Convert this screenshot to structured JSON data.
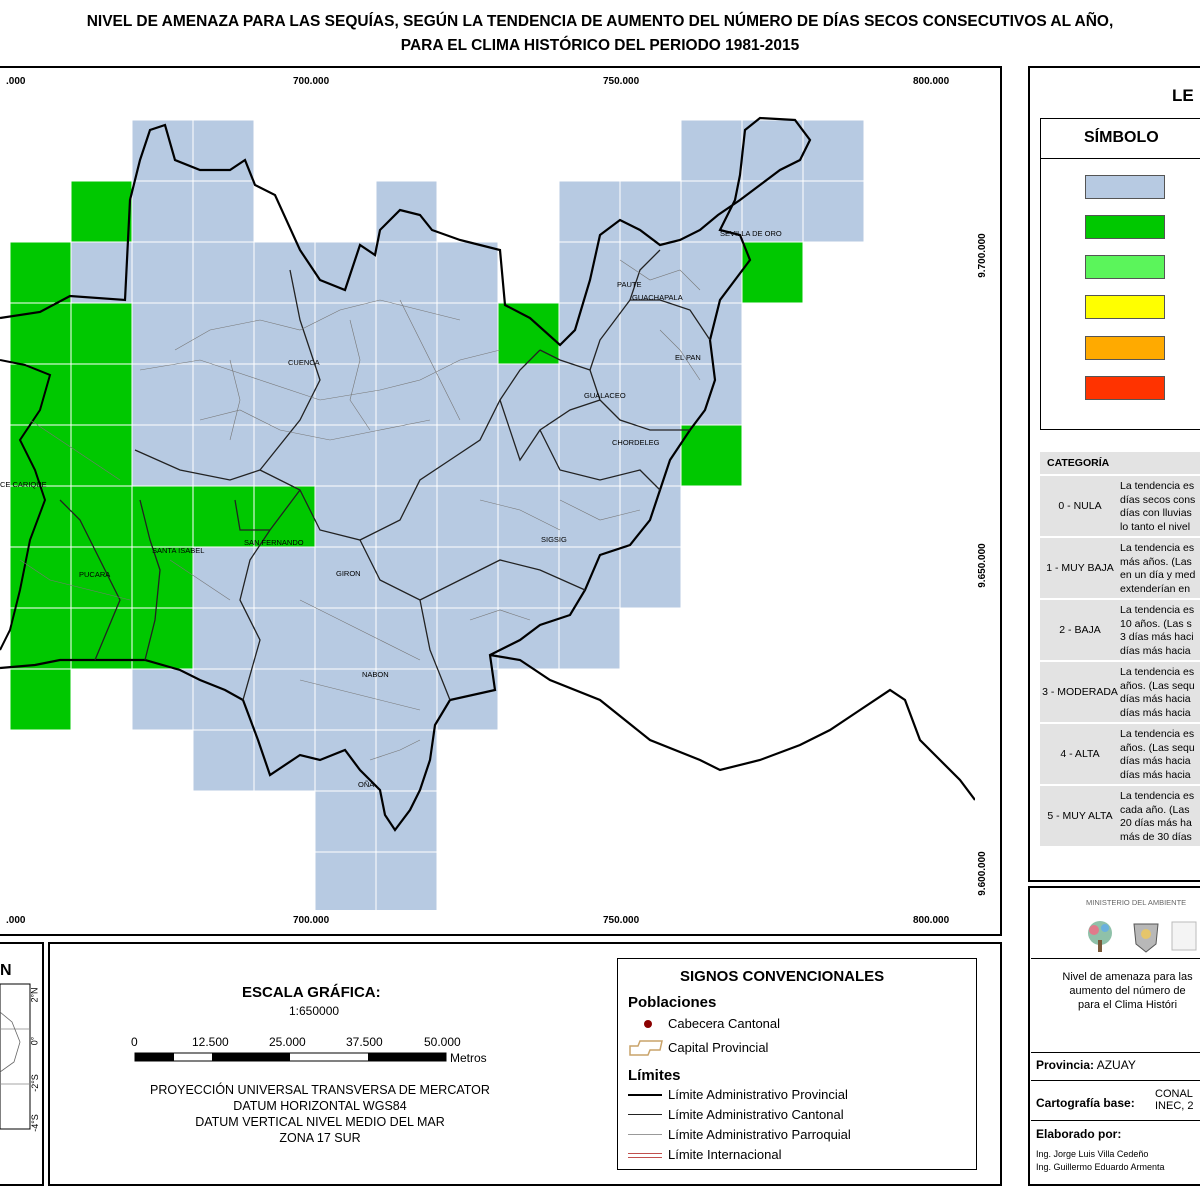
{
  "title": {
    "line1": "NIVEL DE AMENAZA PARA LAS SEQUÍAS, SEGÚN LA TENDENCIA DE AUMENTO DEL NÚMERO DE DÍAS SECOS CONSECUTIVOS AL AÑO,",
    "line2": "PARA EL CLIMA HISTÓRICO DEL PERIODO 1981-2015"
  },
  "map": {
    "x_ticks": [
      ".000",
      "700.000",
      "750.000",
      "800.000"
    ],
    "y_ticks": [
      "9.700.000",
      "9.650.000",
      "9.600.000"
    ],
    "places": [
      {
        "name": "SEVILLA DE ORO"
      },
      {
        "name": "PAUTE"
      },
      {
        "name": "GUACHAPALA"
      },
      {
        "name": "CUENCA"
      },
      {
        "name": "EL PAN"
      },
      {
        "name": "GUALACEO"
      },
      {
        "name": "CHORDELEG"
      },
      {
        "name": "CE CARIQUE"
      },
      {
        "name": "SAN FERNANDO"
      },
      {
        "name": "SANTA ISABEL"
      },
      {
        "name": "SIGSIG"
      },
      {
        "name": "PUCARA"
      },
      {
        "name": "GIRON"
      },
      {
        "name": "NABON"
      },
      {
        "name": "OÑA"
      }
    ],
    "colors": {
      "nula": "#b7cae2",
      "muy_baja": "#00c800",
      "baja": "#5bf55b",
      "moderada": "#ffff00",
      "alta": "#ffaa00",
      "muy_alta": "#ff3300"
    }
  },
  "legend": {
    "title": "LE",
    "symbol_header": "SÍMBOLO",
    "category_header": "CATEGORÍA",
    "categories": [
      {
        "name": "0 - NULA",
        "desc": [
          "La tendencia es",
          "días secos cons",
          "días con lluvias",
          "lo tanto el nivel"
        ]
      },
      {
        "name": "1 - MUY BAJA",
        "desc": [
          "La tendencia es",
          "más años. (Las",
          "en un día y med",
          "extenderían en"
        ]
      },
      {
        "name": "2 - BAJA",
        "desc": [
          "La tendencia es",
          "10 años. (Las s",
          "3 días más haci",
          "días más hacia"
        ]
      },
      {
        "name": "3 - MODERADA",
        "desc": [
          "La tendencia es",
          "años. (Las sequ",
          "días más hacia",
          "días más hacia"
        ]
      },
      {
        "name": "4 - ALTA",
        "desc": [
          "La tendencia es",
          "años. (Las sequ",
          "días más hacia",
          "días más hacia"
        ]
      },
      {
        "name": "5 - MUY ALTA",
        "desc": [
          "La tendencia es",
          "cada año. (Las",
          "20 días más ha",
          "más de 30 días"
        ]
      }
    ]
  },
  "north": {
    "label": "N"
  },
  "inset": {
    "labels": [
      "2°N",
      "0°",
      "-2°S",
      "-4°S"
    ]
  },
  "scale": {
    "title": "ESCALA GRÁFICA:",
    "ratio": "1:650000",
    "ticks": [
      "0",
      "12.500",
      "25.000",
      "37.500",
      "50.000"
    ],
    "unit": "Metros",
    "proj1": "PROYECCIÓN UNIVERSAL TRANSVERSA DE MERCATOR",
    "proj2": "DATUM HORIZONTAL WGS84",
    "proj3": "DATUM VERTICAL NIVEL MEDIO DEL MAR",
    "proj4": "ZONA 17 SUR"
  },
  "signs": {
    "title": "SIGNOS CONVENCIONALES",
    "pob_title": "Poblaciones",
    "cabecera": "Cabecera Cantonal",
    "capital": "Capital Provincial",
    "lim_title": "Límites",
    "lim_prov": "Límite Administrativo Provincial",
    "lim_cant": "Límite Administrativo Cantonal",
    "lim_parr": "Límite Administrativo Parroquial",
    "lim_int": "Límite Internacional"
  },
  "info": {
    "ministry": "MINISTERIO DEL AMBIENTE",
    "desc1": "Nivel de amenaza para las",
    "desc2": "aumento del número de",
    "desc3": "para el Clima Históri",
    "prov_label": "Provincia:",
    "prov_value": "AZUAY",
    "carto_label": "Cartografía base:",
    "carto_value1": "CONAL",
    "carto_value2": "INEC, 2",
    "elab_label": "Elaborado por:",
    "author1": "Ing. Jorge Luis Villa Cedeño",
    "author2": "Ing. Guillermo Eduardo Armenta"
  }
}
